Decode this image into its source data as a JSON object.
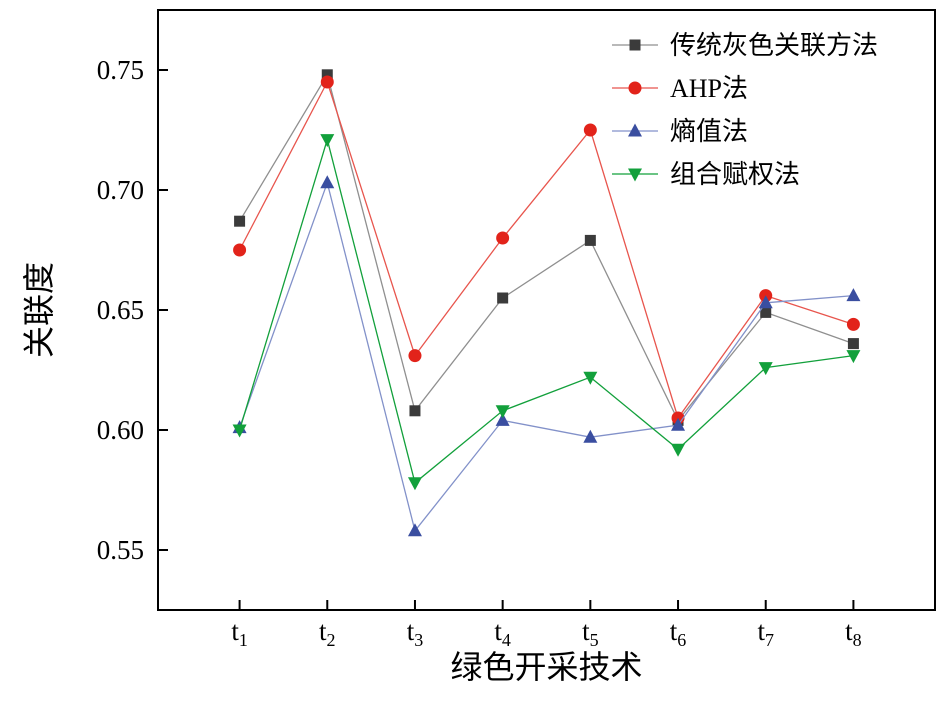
{
  "chart_data": {
    "type": "line",
    "title": "",
    "xlabel": "绿色开采技术",
    "ylabel": "关联度",
    "categories": [
      "t1",
      "t2",
      "t3",
      "t4",
      "t5",
      "t6",
      "t7",
      "t8"
    ],
    "ylim": [
      0.525,
      0.775
    ],
    "yticks": [
      0.55,
      0.6,
      0.65,
      0.7,
      0.75
    ],
    "ytick_labels": [
      "0.55",
      "0.60",
      "0.65",
      "0.70",
      "0.75"
    ],
    "grid": false,
    "legend_position": "top-right-inside",
    "series": [
      {
        "name": "传统灰色关联方法",
        "marker": "square",
        "color": "#3b3b3b",
        "line_color": "#8f8f8f",
        "values": [
          0.687,
          0.748,
          0.608,
          0.655,
          0.679,
          0.604,
          0.649,
          0.636
        ]
      },
      {
        "name": "AHP法",
        "marker": "circle",
        "color": "#e2231a",
        "line_color": "#e8554d",
        "values": [
          0.675,
          0.745,
          0.631,
          0.68,
          0.725,
          0.605,
          0.656,
          0.644
        ]
      },
      {
        "name": "熵值法",
        "marker": "triangle-up",
        "color": "#3a4ea0",
        "line_color": "#8291c9",
        "values": [
          0.601,
          0.703,
          0.558,
          0.604,
          0.597,
          0.602,
          0.653,
          0.656
        ]
      },
      {
        "name": "组合赋权法",
        "marker": "triangle-down",
        "color": "#12a03b",
        "line_color": "#12a03b",
        "values": [
          0.6,
          0.721,
          0.578,
          0.608,
          0.622,
          0.592,
          0.626,
          0.631
        ]
      }
    ]
  }
}
